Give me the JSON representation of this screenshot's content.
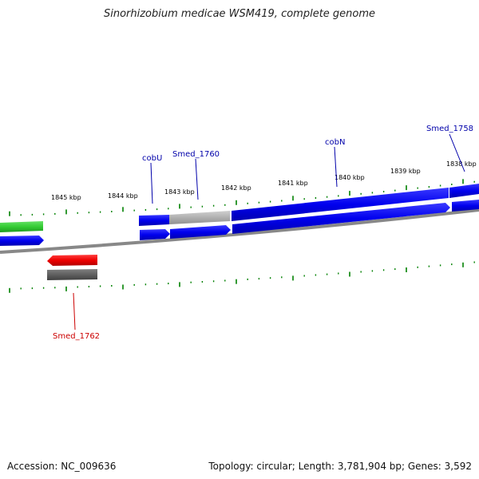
{
  "title": "Sinorhizobium medicae WSM419, complete genome",
  "accession": "Accession: NC_009636",
  "summary": "Topology: circular; Length: 3,781,904 bp; Genes: 3,592",
  "colors": {
    "forward_cds": "#0000ee",
    "forward_rna": "#33cc33",
    "reverse_cds": "#ee0000",
    "pseudogene": "#b0b0b0",
    "dark_gene": "#606060",
    "tick": "#008000",
    "label_forward": "#0000aa",
    "label_reverse": "#cc0000",
    "backbone": "#888888"
  },
  "ruler_labels": [
    "1845 kbp",
    "1844 kbp",
    "1843 kbp",
    "1842 kbp",
    "1841 kbp",
    "1840 kbp",
    "1839 kbp",
    "1838 kbp"
  ],
  "gene_labels": [
    {
      "name": "cobU",
      "strand": "forward"
    },
    {
      "name": "Smed_1760",
      "strand": "forward"
    },
    {
      "name": "cobN",
      "strand": "forward"
    },
    {
      "name": "Smed_1758",
      "strand": "forward"
    },
    {
      "name": "Smed_1762",
      "strand": "reverse"
    }
  ]
}
